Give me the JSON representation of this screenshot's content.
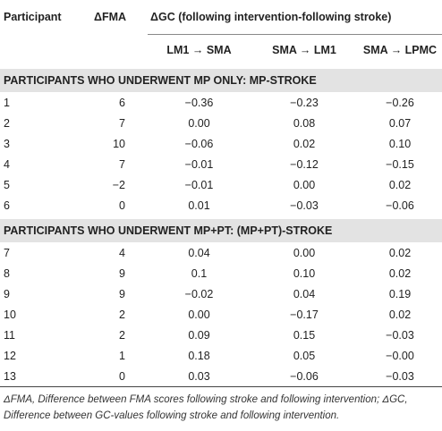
{
  "header": {
    "participant": "Participant",
    "dfma": "ΔFMA",
    "dgc": "ΔGC (following intervention-following stroke)",
    "subcolumns": [
      "LM1 → SMA",
      "SMA → LM1",
      "SMA → LPMC"
    ]
  },
  "sections": [
    {
      "title": "PARTICIPANTS WHO UNDERWENT MP ONLY: MP-STROKE",
      "rows": [
        [
          "1",
          "6",
          "−0.36",
          "−0.23",
          "−0.26"
        ],
        [
          "2",
          "7",
          "0.00",
          "0.08",
          "0.07"
        ],
        [
          "3",
          "10",
          "−0.06",
          "0.02",
          "0.10"
        ],
        [
          "4",
          "7",
          "−0.01",
          "−0.12",
          "−0.15"
        ],
        [
          "5",
          "−2",
          "−0.01",
          "0.00",
          "0.02"
        ],
        [
          "6",
          "0",
          "0.01",
          "−0.03",
          "−0.06"
        ]
      ]
    },
    {
      "title": "PARTICIPANTS WHO UNDERWENT MP+PT: (MP+PT)-STROKE",
      "rows": [
        [
          "7",
          "4",
          "0.04",
          "0.00",
          "0.02"
        ],
        [
          "8",
          "9",
          "0.1",
          "0.10",
          "0.02"
        ],
        [
          "9",
          "9",
          "−0.02",
          "0.04",
          "0.19"
        ],
        [
          "10",
          "2",
          "0.00",
          "−0.17",
          "0.02"
        ],
        [
          "11",
          "2",
          "0.09",
          "0.15",
          "−0.03"
        ],
        [
          "12",
          "1",
          "0.18",
          "0.05",
          "−0.00"
        ],
        [
          "13",
          "0",
          "0.03",
          "−0.06",
          "−0.03"
        ]
      ]
    }
  ],
  "footnote": "ΔFMA, Difference between FMA scores following stroke and following intervention; ΔGC, Difference between GC-values following stroke and following intervention."
}
